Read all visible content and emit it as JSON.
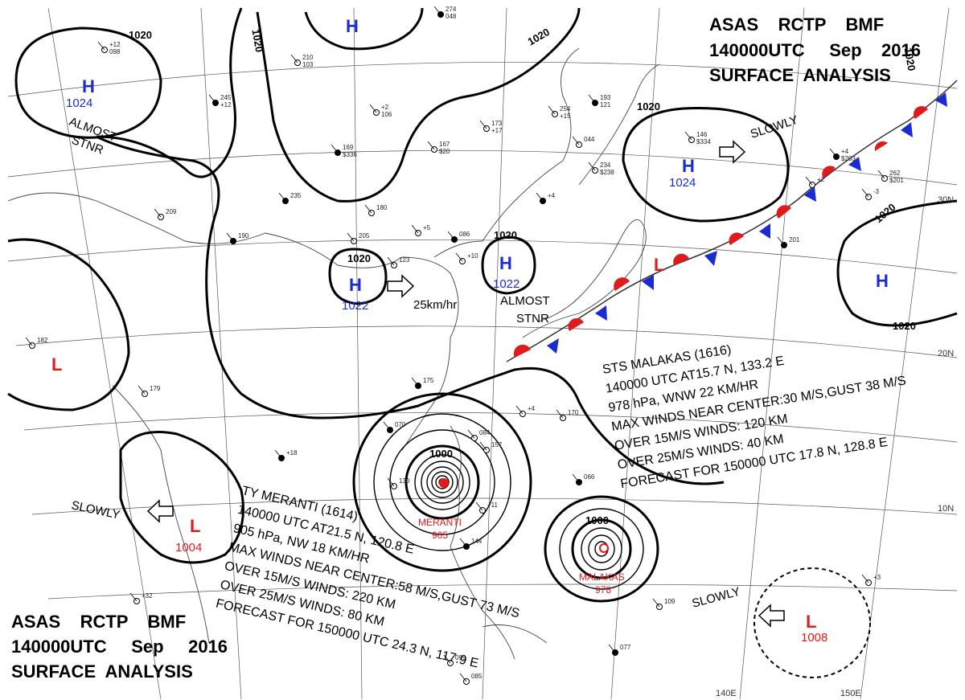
{
  "header_top": {
    "line1": "ASAS    RCTP    BMF",
    "line2": "140000UTC     Sep    2016",
    "line3": "SURFACE  ANALYSIS"
  },
  "header_bottom": {
    "line1": "ASAS    RCTP    BMF",
    "line2": "140000UTC     Sep     2016",
    "line3": "SURFACE  ANALYSIS"
  },
  "colors": {
    "high": "#1a2ccf",
    "low": "#e01b1b",
    "front_cold": "#1a2ccf",
    "front_warm": "#e01b1b"
  },
  "pressure_centers": [
    {
      "type": "H",
      "value": "1024"
    },
    {
      "type": "H",
      "value": ""
    },
    {
      "type": "H",
      "value": "1022"
    },
    {
      "type": "H",
      "value": "1022"
    },
    {
      "type": "H",
      "value": "1024"
    },
    {
      "type": "H",
      "value": ""
    },
    {
      "type": "L",
      "value": ""
    },
    {
      "type": "L",
      "value": "1004"
    },
    {
      "type": "L",
      "value": "1008"
    },
    {
      "type": "L",
      "value": ""
    }
  ],
  "isobar_labels": [
    "1020",
    "1020",
    "1020",
    "1020",
    "1020",
    "1020",
    "1020",
    "1020",
    "1020",
    "1000",
    "1000"
  ],
  "motion_labels": {
    "almost_stnr_1a": "ALMOST",
    "almost_stnr_1b": "STNR",
    "almost_stnr_2a": "ALMOST",
    "almost_stnr_2b": "STNR",
    "slowly_ne": "SLOWLY",
    "slowly_w": "SLOWLY",
    "slowly_se": "SLOWLY",
    "speed_e": "25km/hr"
  },
  "storms": {
    "meranti": {
      "name": "MERANTI",
      "pressure": "905"
    },
    "malakas": {
      "name": "MALAKAS",
      "pressure": "978"
    }
  },
  "sts_malakas_info": [
    "STS  MALAKAS  (1616)",
    "140000 UTC  AT15.7 N, 133.2 E",
    "978 hPa, WNW  22 KM/HR",
    "MAX WINDS NEAR CENTER:30 M/S,GUST 38 M/S",
    "OVER 15M/S WINDS: 120 KM",
    "OVER 25M/S WINDS: 40 KM",
    "FORECAST FOR 150000 UTC 17.8 N, 128.8 E"
  ],
  "ty_meranti_info": [
    "TY  MERANTI  (1614)",
    "140000  UTC  AT21.5 N, 120.8 E",
    "905 hPa, NW  18 KM/HR",
    "MAX WINDS NEAR CENTER:58 M/S,GUST 73 M/S",
    "OVER 15M/S WINDS: 220 KM",
    "OVER 25M/S WINDS: 80 KM",
    "FORECAST FOR 150000 UTC 24.3 N, 117.9 E"
  ],
  "grid_labels": {
    "lat_30": "30N",
    "lat_20": "20N",
    "lat_10": "10N",
    "lon_140": "140E",
    "lon_150": "150E"
  },
  "station_samples": [
    "274",
    "+12",
    "210",
    "245",
    "+2",
    "254",
    "193",
    "173",
    "167",
    "169",
    "146",
    "234",
    "+4",
    "262",
    "-3",
    "235",
    "180",
    "209",
    "190",
    "205",
    "+5",
    "086",
    "+10",
    "123",
    "201",
    "182",
    "179",
    "175",
    "+4",
    "170",
    "070",
    "084",
    "157",
    "+18",
    "130",
    "+11",
    "144",
    "109",
    "+3",
    "077",
    "085",
    "099",
    "+4",
    "044",
    "+2",
    "066",
    "+32",
    "048",
    "098",
    "103",
    "+12",
    "106",
    "+15",
    "121",
    "+17",
    "$20",
    "$336",
    "$334",
    "$238",
    "$203",
    "$201"
  ]
}
